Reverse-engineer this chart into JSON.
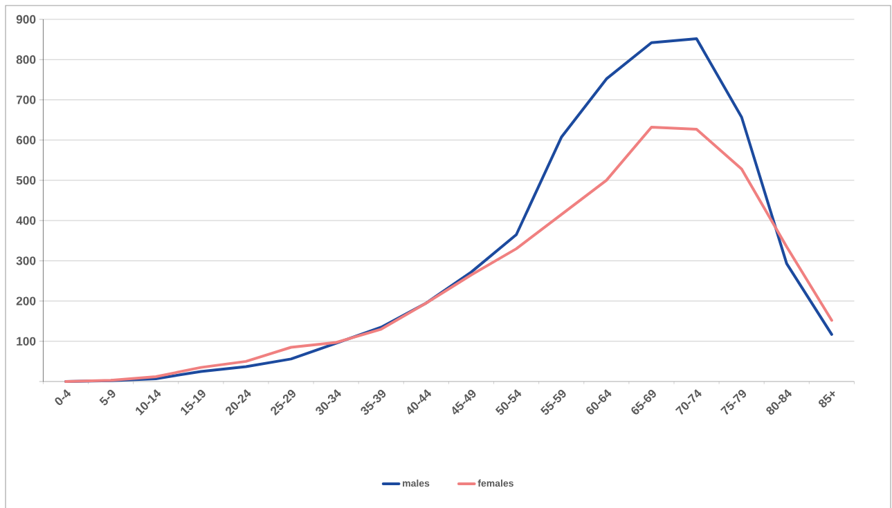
{
  "chart_data": {
    "type": "line",
    "categories": [
      "0-4",
      "5-9",
      "10-14",
      "15-19",
      "20-24",
      "25-29",
      "30-34",
      "35-39",
      "40-44",
      "45-49",
      "50-54",
      "55-59",
      "60-64",
      "65-69",
      "70-74",
      "75-79",
      "80-84",
      "85+"
    ],
    "series": [
      {
        "name": "males",
        "color": "#1c4a9e",
        "values": [
          0,
          2,
          7,
          25,
          37,
          56,
          95,
          135,
          195,
          272,
          365,
          607,
          752,
          842,
          852,
          657,
          293,
          117
        ]
      },
      {
        "name": "females",
        "color": "#f08080",
        "values": [
          0,
          3,
          12,
          35,
          50,
          85,
          97,
          130,
          195,
          265,
          330,
          415,
          500,
          632,
          627,
          528,
          335,
          152
        ]
      }
    ],
    "ylim": [
      0,
      900
    ],
    "yticks": [
      {
        "value": 0,
        "label": null
      },
      100,
      200,
      300,
      400,
      500,
      600,
      700,
      800,
      900
    ],
    "grid": "y",
    "legend": "bottom",
    "marker": "none",
    "line_style": "solid"
  }
}
